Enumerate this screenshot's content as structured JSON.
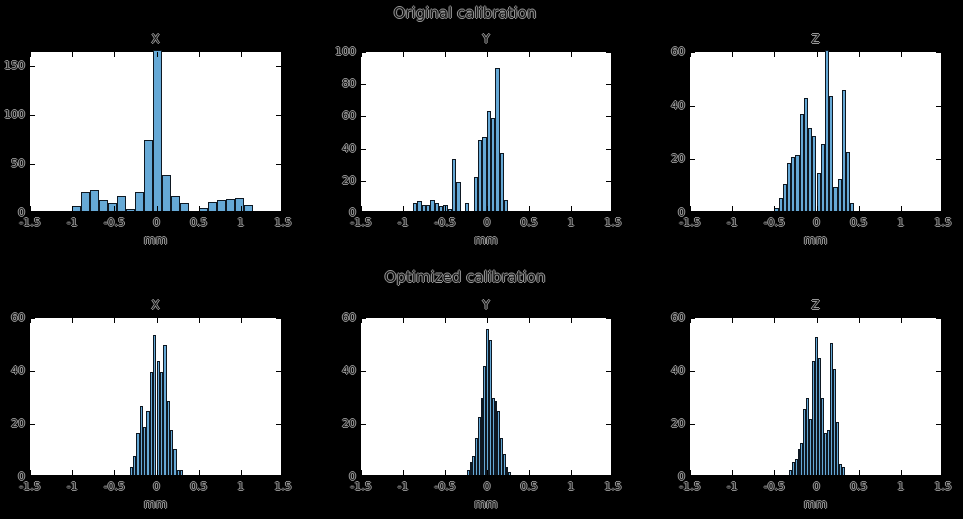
{
  "figure": {
    "row_titles": [
      "Original calibration",
      "Optimized calibration"
    ],
    "xlabel": "mm"
  },
  "colors": {
    "figure_bg": "#000000",
    "axes_bg": "#ffffff",
    "axis_line": "#000000",
    "bar_fill": "#66A9D6",
    "bar_edge": "#0e1822",
    "text_halo": "#979797"
  },
  "chart_data": [
    {
      "type": "bar",
      "group": "Original calibration",
      "title": "X",
      "xlabel": "mm",
      "xlim": [
        -1.5,
        1.5
      ],
      "ylim": [
        0,
        164
      ],
      "xticks": [
        -1.5,
        -1,
        -0.5,
        0,
        0.5,
        1,
        1.5
      ],
      "yticks": [
        0,
        50,
        100,
        150
      ],
      "bin_start": -1.0,
      "bin_width": 0.107,
      "values": [
        5,
        19,
        21,
        11,
        8,
        15,
        2,
        19,
        72,
        164,
        37,
        15,
        8,
        0,
        3,
        9,
        11,
        12,
        13,
        6
      ],
      "peak_clipped_at_top": true,
      "grid": false,
      "legend": false
    },
    {
      "type": "bar",
      "group": "Original calibration",
      "title": "Y",
      "xlabel": "mm",
      "xlim": [
        -1.5,
        1.5
      ],
      "ylim": [
        0,
        100
      ],
      "xticks": [
        -1.5,
        -1,
        -0.5,
        0,
        0.5,
        1,
        1.5
      ],
      "yticks": [
        0,
        20,
        40,
        60,
        80,
        100
      ],
      "bin_start": -0.88,
      "bin_width": 0.0516,
      "values": [
        5,
        6,
        4,
        4,
        7,
        5,
        3,
        4,
        1,
        32,
        18,
        0,
        5,
        0,
        21,
        44,
        46,
        62,
        58,
        89,
        36,
        7
      ],
      "peak_clipped_at_top": false,
      "grid": false,
      "legend": false
    },
    {
      "type": "bar",
      "group": "Original calibration",
      "title": "Z",
      "xlabel": "mm",
      "xlim": [
        -1.5,
        1.5
      ],
      "ylim": [
        0,
        60
      ],
      "xticks": [
        -1.5,
        -1,
        -0.5,
        0,
        0.5,
        1,
        1.5
      ],
      "yticks": [
        0,
        20,
        40,
        60
      ],
      "bin_start": -0.5,
      "bin_width": 0.05,
      "values": [
        1,
        5,
        10,
        18,
        20,
        21,
        36,
        42,
        31,
        28,
        14,
        25,
        60,
        43,
        9,
        12,
        45,
        22,
        3
      ],
      "peak_clipped_at_top": true,
      "grid": false,
      "legend": false
    },
    {
      "type": "bar",
      "group": "Optimized calibration",
      "title": "X",
      "xlabel": "mm",
      "xlim": [
        -1.5,
        1.5
      ],
      "ylim": [
        0,
        60
      ],
      "xticks": [
        -1.5,
        -1,
        -0.5,
        0,
        0.5,
        1,
        1.5
      ],
      "yticks": [
        0,
        20,
        40,
        60
      ],
      "bin_start": -0.32,
      "bin_width": 0.04,
      "values": [
        3,
        7,
        16,
        26,
        18,
        24,
        39,
        53,
        43,
        39,
        49,
        28,
        17,
        10,
        2,
        2
      ],
      "peak_clipped_at_top": false,
      "grid": false,
      "legend": false
    },
    {
      "type": "bar",
      "group": "Optimized calibration",
      "title": "Y",
      "xlabel": "mm",
      "xlim": [
        -1.5,
        1.5
      ],
      "ylim": [
        0,
        60
      ],
      "xticks": [
        -1.5,
        -1,
        -0.5,
        0,
        0.5,
        1,
        1.5
      ],
      "yticks": [
        0,
        20,
        40,
        60
      ],
      "bin_start": -0.24,
      "bin_width": 0.033,
      "values": [
        2,
        5,
        7,
        14,
        22,
        29,
        41,
        55,
        51,
        29,
        28,
        24,
        14,
        8,
        3,
        1
      ],
      "peak_clipped_at_top": false,
      "grid": false,
      "legend": false
    },
    {
      "type": "bar",
      "group": "Optimized calibration",
      "title": "Z",
      "xlabel": "mm",
      "xlim": [
        -1.5,
        1.5
      ],
      "ylim": [
        0,
        60
      ],
      "xticks": [
        -1.5,
        -1,
        -0.5,
        0,
        0.5,
        1,
        1.5
      ],
      "yticks": [
        0,
        20,
        40,
        60
      ],
      "bin_start": -0.33,
      "bin_width": 0.035,
      "values": [
        2,
        5,
        6,
        10,
        12,
        25,
        29,
        21,
        43,
        52,
        44,
        29,
        16,
        17,
        50,
        40,
        20,
        4,
        3
      ],
      "peak_clipped_at_top": false,
      "grid": false,
      "legend": false
    }
  ]
}
